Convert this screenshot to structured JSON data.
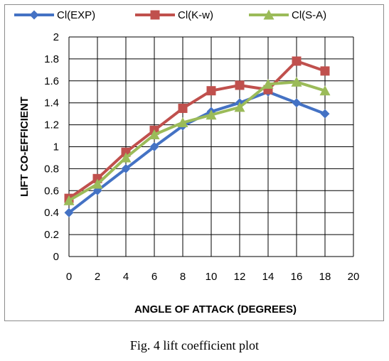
{
  "chart_data": {
    "type": "line",
    "title": "",
    "xlabel": "ANGLE OF ATTACK  (DEGREES)",
    "ylabel": "LIFT  CO-EFFICIENT",
    "xlim": [
      0,
      20
    ],
    "ylim": [
      0,
      2
    ],
    "x_ticks": [
      "0",
      "2",
      "4",
      "6",
      "8",
      "10",
      "12",
      "14",
      "16",
      "18",
      "20"
    ],
    "y_ticks": [
      "0",
      "0.2",
      "0.4",
      "0.6",
      "0.8",
      "1",
      "1.2",
      "1.4",
      "1.6",
      "1.8",
      "2"
    ],
    "grid": true,
    "legend_position": "top",
    "x": [
      0,
      2,
      4,
      6,
      8,
      10,
      12,
      14,
      16,
      18
    ],
    "series": [
      {
        "name": "Cl(EXP)",
        "color": "#4472c4",
        "marker": "diamond",
        "values": [
          0.4,
          0.6,
          0.8,
          1.0,
          1.19,
          1.32,
          1.4,
          1.5,
          1.4,
          1.3
        ]
      },
      {
        "name": "Cl(K-w)",
        "color": "#c0504d",
        "marker": "square",
        "values": [
          0.53,
          0.71,
          0.95,
          1.15,
          1.35,
          1.51,
          1.56,
          1.52,
          1.78,
          1.69
        ]
      },
      {
        "name": "Cl(S-A)",
        "color": "#9bbb59",
        "marker": "triangle",
        "values": [
          0.51,
          0.66,
          0.9,
          1.11,
          1.22,
          1.29,
          1.36,
          1.57,
          1.59,
          1.51
        ]
      }
    ]
  },
  "caption": "Fig. 4 lift coefficient plot"
}
